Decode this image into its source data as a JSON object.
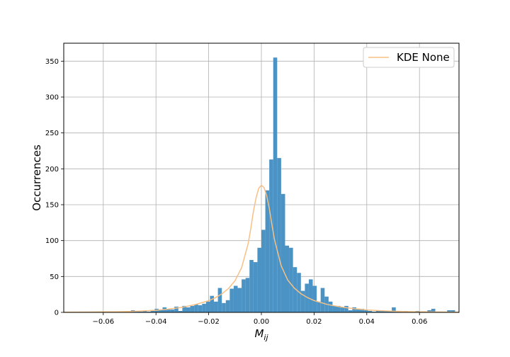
{
  "chart_data": {
    "type": "bar",
    "xlabel": "M",
    "xlabel_sub": "ij",
    "ylabel": "Occurrences",
    "xlim": [
      -0.075,
      0.075
    ],
    "ylim": [
      0,
      375
    ],
    "xticks": [
      -0.06,
      -0.04,
      -0.02,
      0.0,
      0.02,
      0.04,
      0.06
    ],
    "xtick_labels": [
      "−0.06",
      "−0.04",
      "−0.02",
      "0.00",
      "0.02",
      "0.04",
      "0.06"
    ],
    "yticks": [
      0,
      50,
      100,
      150,
      200,
      250,
      300,
      350
    ],
    "ytick_labels": [
      "0",
      "50",
      "100",
      "150",
      "200",
      "250",
      "300",
      "350"
    ],
    "grid": true,
    "legend_position": "top-right",
    "bar_color": "#4a93c4",
    "kde_color": "#f6c085",
    "histogram": {
      "bin_width": 0.0015,
      "bins": [
        {
          "x": -0.075,
          "v": 1
        },
        {
          "x": -0.0735,
          "v": 0
        },
        {
          "x": -0.072,
          "v": 1
        },
        {
          "x": -0.0705,
          "v": 0
        },
        {
          "x": -0.069,
          "v": 1
        },
        {
          "x": -0.0675,
          "v": 0
        },
        {
          "x": -0.066,
          "v": 1
        },
        {
          "x": -0.0645,
          "v": 0
        },
        {
          "x": -0.063,
          "v": 0
        },
        {
          "x": -0.0615,
          "v": 0
        },
        {
          "x": -0.06,
          "v": 1
        },
        {
          "x": -0.0585,
          "v": 0
        },
        {
          "x": -0.057,
          "v": 1
        },
        {
          "x": -0.0555,
          "v": 0
        },
        {
          "x": -0.054,
          "v": 0
        },
        {
          "x": -0.0525,
          "v": 0
        },
        {
          "x": -0.051,
          "v": 0
        },
        {
          "x": -0.0495,
          "v": 3
        },
        {
          "x": -0.048,
          "v": 1
        },
        {
          "x": -0.0465,
          "v": 1
        },
        {
          "x": -0.045,
          "v": 2
        },
        {
          "x": -0.0435,
          "v": 1
        },
        {
          "x": -0.042,
          "v": 2
        },
        {
          "x": -0.0405,
          "v": 5
        },
        {
          "x": -0.039,
          "v": 4
        },
        {
          "x": -0.0375,
          "v": 7
        },
        {
          "x": -0.036,
          "v": 4
        },
        {
          "x": -0.0345,
          "v": 4
        },
        {
          "x": -0.033,
          "v": 8
        },
        {
          "x": -0.0315,
          "v": 2
        },
        {
          "x": -0.03,
          "v": 9
        },
        {
          "x": -0.0285,
          "v": 7
        },
        {
          "x": -0.027,
          "v": 9
        },
        {
          "x": -0.0255,
          "v": 11
        },
        {
          "x": -0.024,
          "v": 10
        },
        {
          "x": -0.0225,
          "v": 12
        },
        {
          "x": -0.021,
          "v": 15
        },
        {
          "x": -0.0195,
          "v": 23
        },
        {
          "x": -0.018,
          "v": 15
        },
        {
          "x": -0.0165,
          "v": 34
        },
        {
          "x": -0.015,
          "v": 13
        },
        {
          "x": -0.0135,
          "v": 17
        },
        {
          "x": -0.012,
          "v": 33
        },
        {
          "x": -0.0105,
          "v": 37
        },
        {
          "x": -0.009,
          "v": 34
        },
        {
          "x": -0.0075,
          "v": 46
        },
        {
          "x": -0.006,
          "v": 48
        },
        {
          "x": -0.0045,
          "v": 73
        },
        {
          "x": -0.003,
          "v": 70
        },
        {
          "x": -0.0015,
          "v": 90
        },
        {
          "x": 0.0,
          "v": 115
        },
        {
          "x": 0.0015,
          "v": 170
        },
        {
          "x": 0.003,
          "v": 213
        },
        {
          "x": 0.0045,
          "v": 355
        },
        {
          "x": 0.006,
          "v": 215
        },
        {
          "x": 0.0075,
          "v": 165
        },
        {
          "x": 0.009,
          "v": 93
        },
        {
          "x": 0.0105,
          "v": 90
        },
        {
          "x": 0.012,
          "v": 63
        },
        {
          "x": 0.0135,
          "v": 55
        },
        {
          "x": 0.015,
          "v": 30
        },
        {
          "x": 0.0165,
          "v": 40
        },
        {
          "x": 0.018,
          "v": 46
        },
        {
          "x": 0.0195,
          "v": 37
        },
        {
          "x": 0.021,
          "v": 15
        },
        {
          "x": 0.0225,
          "v": 34
        },
        {
          "x": 0.024,
          "v": 22
        },
        {
          "x": 0.0255,
          "v": 15
        },
        {
          "x": 0.027,
          "v": 9
        },
        {
          "x": 0.0285,
          "v": 9
        },
        {
          "x": 0.03,
          "v": 7
        },
        {
          "x": 0.0315,
          "v": 9
        },
        {
          "x": 0.033,
          "v": 3
        },
        {
          "x": 0.0345,
          "v": 7
        },
        {
          "x": 0.036,
          "v": 5
        },
        {
          "x": 0.0375,
          "v": 5
        },
        {
          "x": 0.039,
          "v": 3
        },
        {
          "x": 0.0405,
          "v": 2
        },
        {
          "x": 0.042,
          "v": 1
        },
        {
          "x": 0.0435,
          "v": 2
        },
        {
          "x": 0.045,
          "v": 3
        },
        {
          "x": 0.0465,
          "v": 2
        },
        {
          "x": 0.048,
          "v": 2
        },
        {
          "x": 0.0495,
          "v": 7
        },
        {
          "x": 0.051,
          "v": 2
        },
        {
          "x": 0.0525,
          "v": 1
        },
        {
          "x": 0.054,
          "v": 2
        },
        {
          "x": 0.0555,
          "v": 1
        },
        {
          "x": 0.057,
          "v": 1
        },
        {
          "x": 0.0585,
          "v": 2
        },
        {
          "x": 0.06,
          "v": 1
        },
        {
          "x": 0.0615,
          "v": 1
        },
        {
          "x": 0.063,
          "v": 3
        },
        {
          "x": 0.0645,
          "v": 5
        },
        {
          "x": 0.066,
          "v": 1
        },
        {
          "x": 0.0675,
          "v": 1
        },
        {
          "x": 0.069,
          "v": 0
        },
        {
          "x": 0.0705,
          "v": 3
        },
        {
          "x": 0.072,
          "v": 3
        }
      ]
    },
    "kde_series": {
      "name": "KDE None",
      "x": [
        -0.075,
        -0.07,
        -0.065,
        -0.06,
        -0.055,
        -0.05,
        -0.045,
        -0.04,
        -0.035,
        -0.03,
        -0.025,
        -0.02,
        -0.0175,
        -0.015,
        -0.0125,
        -0.01,
        -0.0075,
        -0.005,
        -0.004,
        -0.003,
        -0.002,
        -0.001,
        0.0,
        0.001,
        0.002,
        0.003,
        0.004,
        0.005,
        0.0075,
        0.01,
        0.0125,
        0.015,
        0.0175,
        0.02,
        0.025,
        0.03,
        0.035,
        0.04,
        0.045,
        0.05,
        0.055,
        0.06,
        0.065,
        0.07,
        0.075
      ],
      "y": [
        0.3,
        0.4,
        0.5,
        0.7,
        0.9,
        1.3,
        2.0,
        3.0,
        4.6,
        7.1,
        11.0,
        16.3,
        20.3,
        25.8,
        33.3,
        44.1,
        62.3,
        96.0,
        117.0,
        141.0,
        160.0,
        173.0,
        177.0,
        174.0,
        163.0,
        145.0,
        122.0,
        101.0,
        65.0,
        45.0,
        33.8,
        26.1,
        20.6,
        16.5,
        11.1,
        7.6,
        5.2,
        3.5,
        2.4,
        1.6,
        1.1,
        0.8,
        0.6,
        0.4,
        0.3
      ]
    }
  }
}
